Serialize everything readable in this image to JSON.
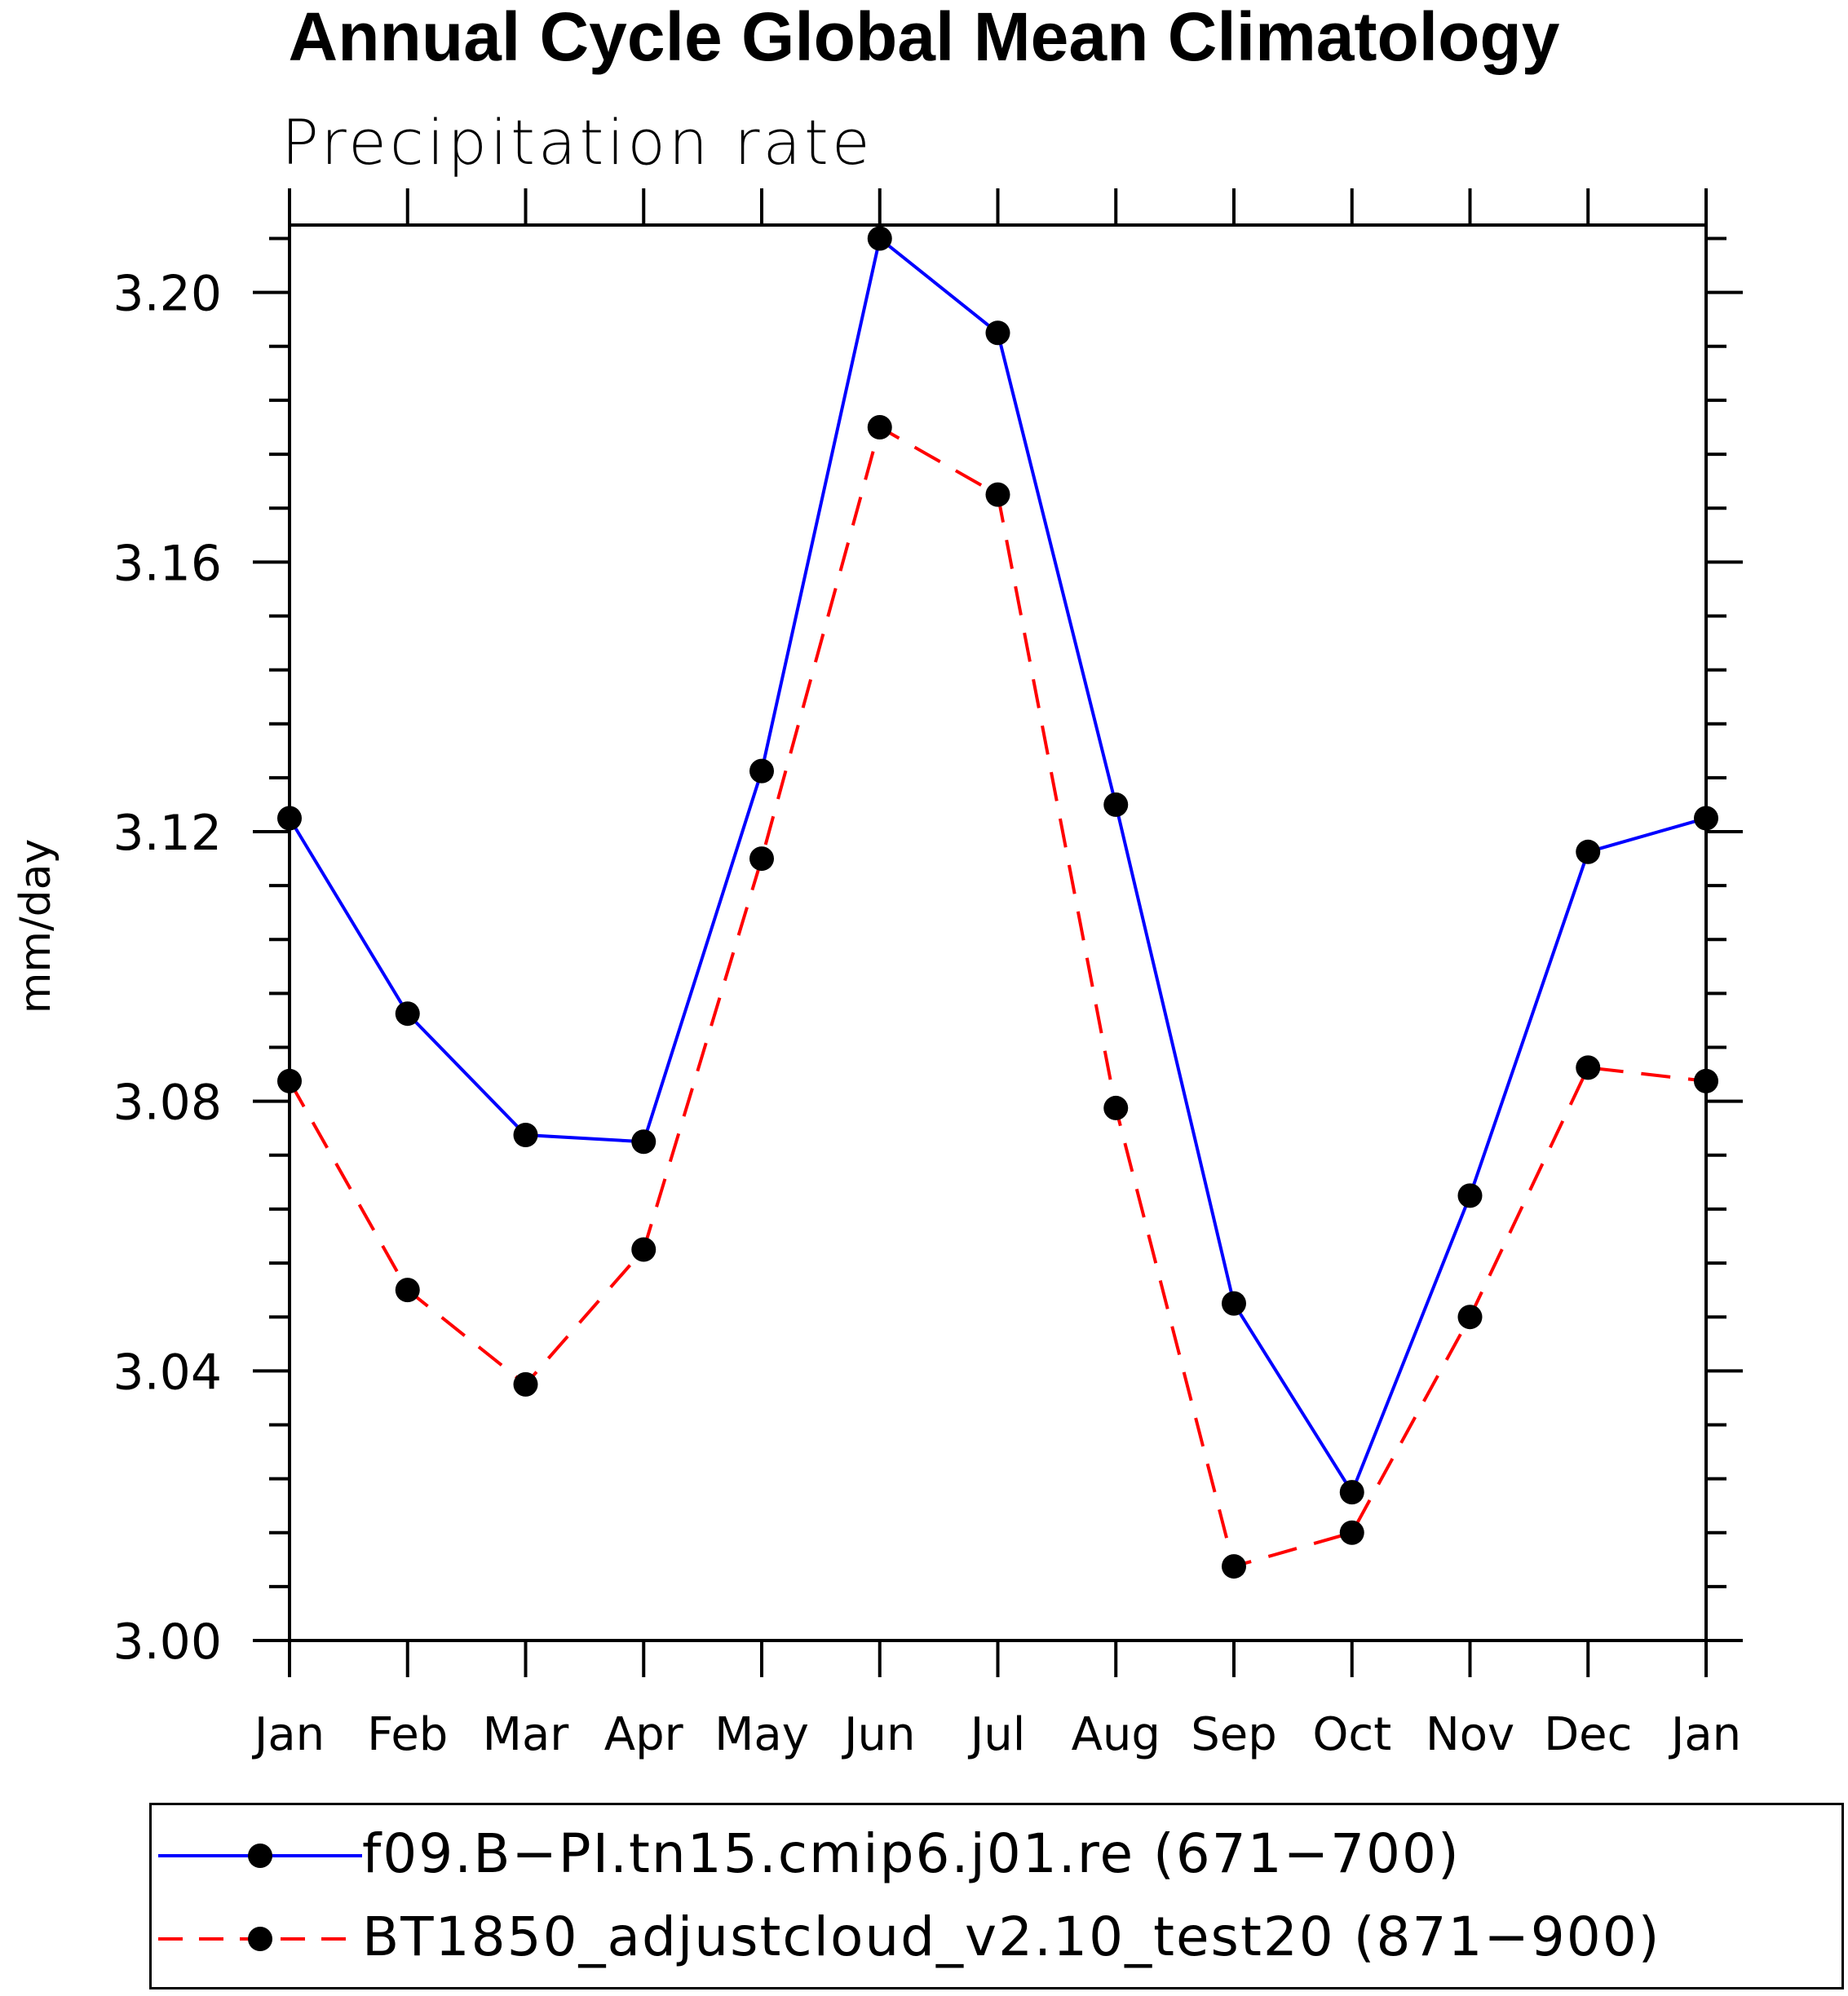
{
  "chart_data": {
    "type": "line",
    "title": "Annual Cycle Global Mean Climatology",
    "subtitle": "Precipitation rate",
    "xlabel": "",
    "ylabel": "mm/day",
    "categories": [
      "Jan",
      "Feb",
      "Mar",
      "Apr",
      "May",
      "Jun",
      "Jul",
      "Aug",
      "Sep",
      "Oct",
      "Nov",
      "Dec",
      "Jan"
    ],
    "yticks": [
      "3.00",
      "3.04",
      "3.08",
      "3.12",
      "3.16",
      "3.20"
    ],
    "ylim": [
      3.0,
      3.21
    ],
    "series": [
      {
        "name": "f09.B−PI.tn15.cmip6.j01.re (671−700)",
        "color": "#0000ff",
        "style": "solid",
        "values": [
          3.122,
          3.093,
          3.075,
          3.074,
          3.129,
          3.208,
          3.194,
          3.124,
          3.05,
          3.022,
          3.066,
          3.117,
          3.122
        ]
      },
      {
        "name": "BT1850_adjustcloud_v2.10_test20 (871−900)",
        "color": "#ff0000",
        "style": "dashed",
        "values": [
          3.083,
          3.052,
          3.038,
          3.058,
          3.116,
          3.18,
          3.17,
          3.079,
          3.011,
          3.016,
          3.048,
          3.085,
          3.083
        ]
      }
    ],
    "legend_position": "bottom"
  }
}
